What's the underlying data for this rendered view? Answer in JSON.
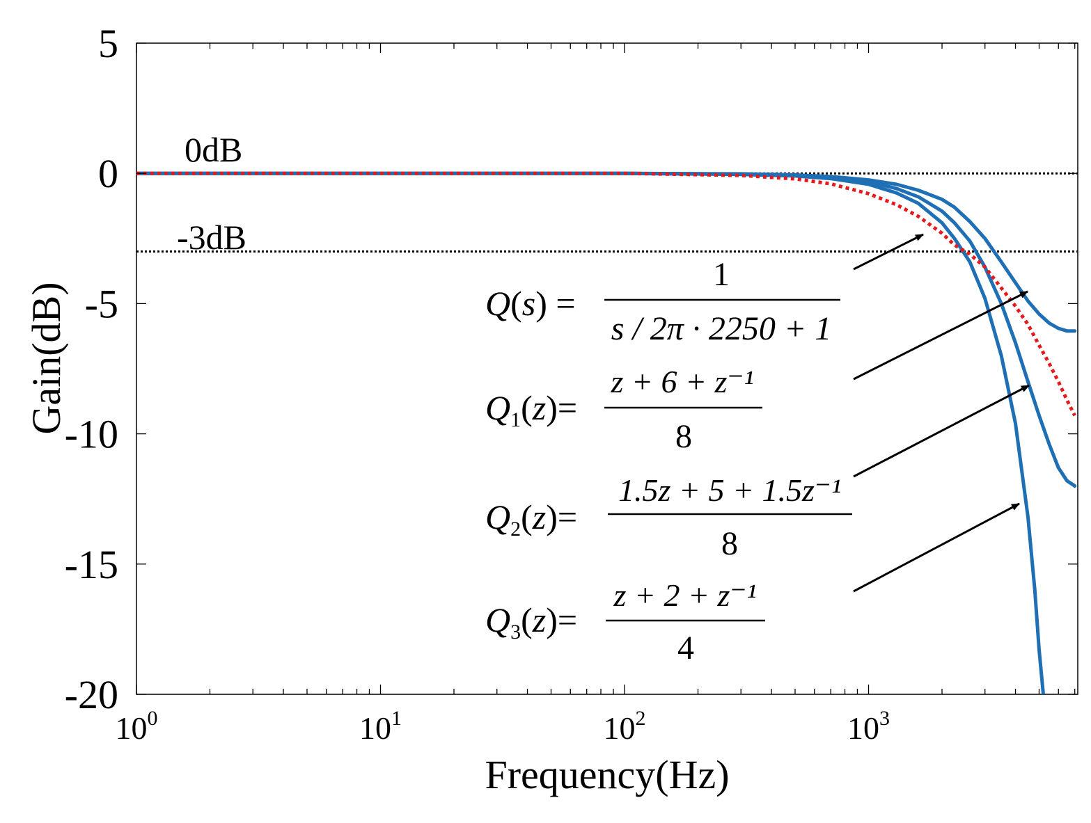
{
  "chart_data": {
    "type": "line",
    "xlabel": "Frequency(Hz)",
    "ylabel": "Gain(dB)",
    "xscale": "log",
    "xlim": [
      1,
      7200
    ],
    "ylim": [
      -20,
      5
    ],
    "grid": false,
    "xticks": [
      {
        "value": 1,
        "base": "10",
        "exp": "0"
      },
      {
        "value": 10,
        "base": "10",
        "exp": "1"
      },
      {
        "value": 100,
        "base": "10",
        "exp": "2"
      },
      {
        "value": 1000,
        "base": "10",
        "exp": "3"
      }
    ],
    "yticks": [
      {
        "value": 5,
        "label": "5"
      },
      {
        "value": 0,
        "label": "0"
      },
      {
        "value": -5,
        "label": "-5"
      },
      {
        "value": -10,
        "label": "-10"
      },
      {
        "value": -15,
        "label": "-15"
      },
      {
        "value": -20,
        "label": "-20"
      }
    ],
    "reference_lines": [
      {
        "value": 0,
        "label": "0dB"
      },
      {
        "value": -3,
        "label": "-3dB"
      }
    ],
    "series": [
      {
        "color": "#e41a1c",
        "style": "dotted",
        "x": [
          1,
          100,
          300,
          500,
          700,
          1000,
          1300,
          1600,
          2000,
          2250,
          2600,
          3000,
          3500,
          4000,
          4500,
          5000,
          5500,
          6000,
          6500,
          7000
        ],
        "y": [
          0,
          0,
          -0.08,
          -0.21,
          -0.4,
          -0.78,
          -1.2,
          -1.65,
          -2.3,
          -2.75,
          -3.1,
          -3.6,
          -4.4,
          -5.1,
          -5.8,
          -6.6,
          -7.3,
          -8.0,
          -8.7,
          -9.3
        ]
      },
      {
        "color": "#1f6fb5",
        "style": "solid",
        "x": [
          1,
          100,
          300,
          500,
          700,
          1000,
          1300,
          1600,
          2000,
          2250,
          2600,
          3000,
          3500,
          4000,
          4500,
          5000,
          5500,
          6000,
          6500,
          7000
        ],
        "y": [
          0,
          0,
          -0.02,
          -0.06,
          -0.12,
          -0.25,
          -0.42,
          -0.65,
          -1.0,
          -1.3,
          -1.85,
          -2.5,
          -3.4,
          -4.2,
          -4.9,
          -5.4,
          -5.75,
          -5.95,
          -6.05,
          -6.05
        ]
      },
      {
        "color": "#1f6fb5",
        "style": "solid",
        "x": [
          1,
          100,
          300,
          500,
          700,
          1000,
          1300,
          1600,
          2000,
          2250,
          2600,
          3000,
          3500,
          4000,
          4500,
          5000,
          5500,
          6000,
          6500,
          7000
        ],
        "y": [
          0,
          0,
          -0.03,
          -0.07,
          -0.15,
          -0.32,
          -0.58,
          -0.9,
          -1.45,
          -1.9,
          -2.6,
          -3.6,
          -5.0,
          -6.5,
          -8.0,
          -9.3,
          -10.4,
          -11.3,
          -11.8,
          -12.0
        ]
      },
      {
        "color": "#1f6fb5",
        "style": "solid",
        "x": [
          1,
          100,
          300,
          500,
          700,
          1000,
          1300,
          1600,
          2000,
          2250,
          2600,
          3000,
          3500,
          4000,
          4500,
          4800,
          5000,
          5200
        ],
        "y": [
          0,
          0,
          -0.04,
          -0.1,
          -0.2,
          -0.42,
          -0.75,
          -1.15,
          -1.9,
          -2.5,
          -3.4,
          -4.8,
          -7.0,
          -9.6,
          -13.2,
          -16.0,
          -18.3,
          -20.0
        ]
      }
    ],
    "annotations": [
      {
        "name": "Q(s)",
        "lhs": "Q",
        "sub": "",
        "arg": "s",
        "numerator": "1",
        "denominator": "s / 2π · 2250 + 1"
      },
      {
        "name": "Q1(z)",
        "lhs": "Q",
        "sub": "1",
        "arg": "z",
        "numerator": "z + 6 + z⁻¹",
        "denominator": "8"
      },
      {
        "name": "Q2(z)",
        "lhs": "Q",
        "sub": "2",
        "arg": "z",
        "numerator": "1.5z + 5 + 1.5z⁻¹",
        "denominator": "8"
      },
      {
        "name": "Q3(z)",
        "lhs": "Q",
        "sub": "3",
        "arg": "z",
        "numerator": "z + 2 + z⁻¹",
        "denominator": "4"
      }
    ]
  }
}
